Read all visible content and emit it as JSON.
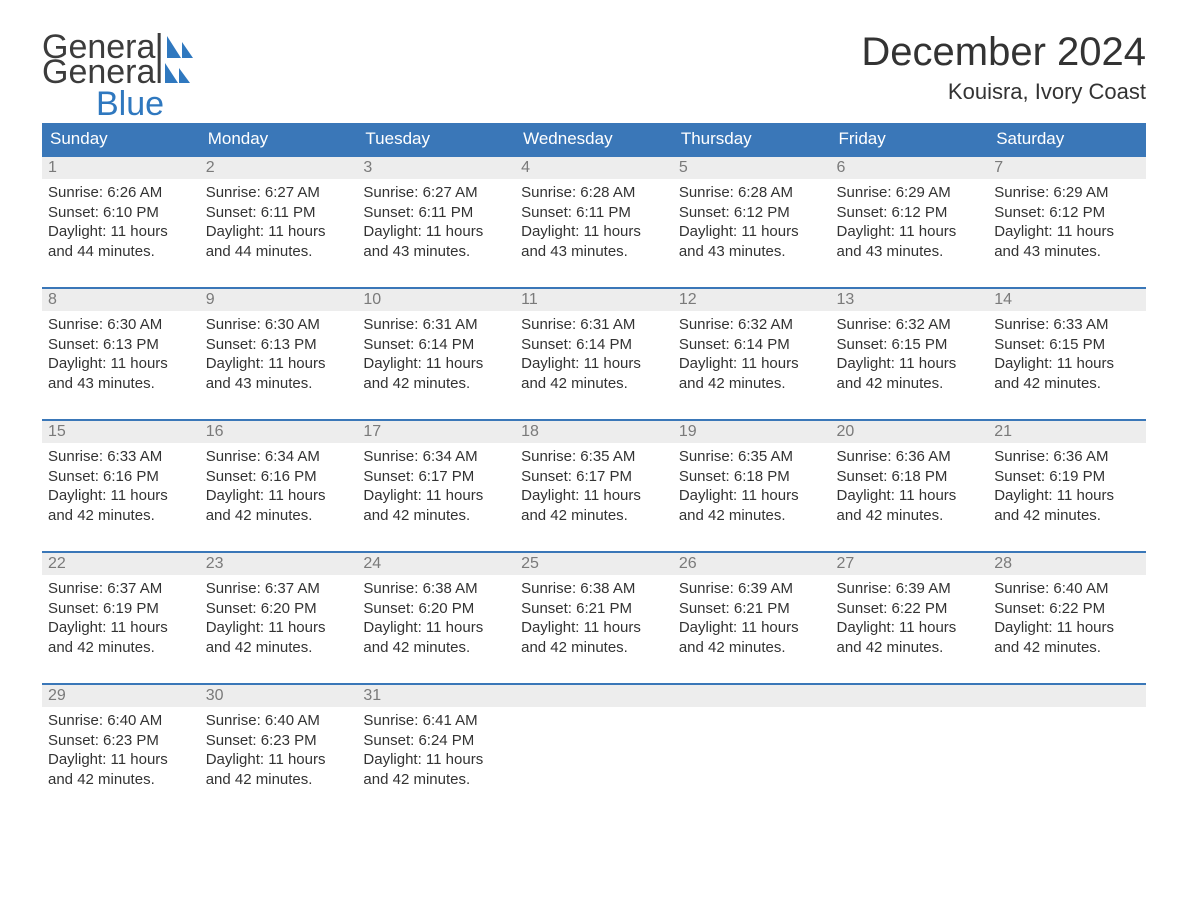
{
  "brand": {
    "part1": "General",
    "part2": "Blue"
  },
  "header": {
    "title": "December 2024",
    "location": "Kouisra, Ivory Coast"
  },
  "colors": {
    "header_bg": "#3a77b8",
    "header_text": "#ffffff",
    "daybar_bg": "#ededed",
    "daybar_border": "#3a77b8",
    "daynum_color": "#7a7a7a",
    "body_text": "#333333",
    "brand_gray": "#3c3c3c",
    "brand_blue": "#2f78bf",
    "page_bg": "#ffffff"
  },
  "typography": {
    "title_fontsize": 40,
    "location_fontsize": 22,
    "weekday_fontsize": 17,
    "body_fontsize": 15,
    "logo_fontsize": 34
  },
  "calendar": {
    "weekdays": [
      "Sunday",
      "Monday",
      "Tuesday",
      "Wednesday",
      "Thursday",
      "Friday",
      "Saturday"
    ],
    "weeks": [
      [
        {
          "day": "1",
          "sunrise": "Sunrise: 6:26 AM",
          "sunset": "Sunset: 6:10 PM",
          "daylight1": "Daylight: 11 hours",
          "daylight2": "and 44 minutes."
        },
        {
          "day": "2",
          "sunrise": "Sunrise: 6:27 AM",
          "sunset": "Sunset: 6:11 PM",
          "daylight1": "Daylight: 11 hours",
          "daylight2": "and 44 minutes."
        },
        {
          "day": "3",
          "sunrise": "Sunrise: 6:27 AM",
          "sunset": "Sunset: 6:11 PM",
          "daylight1": "Daylight: 11 hours",
          "daylight2": "and 43 minutes."
        },
        {
          "day": "4",
          "sunrise": "Sunrise: 6:28 AM",
          "sunset": "Sunset: 6:11 PM",
          "daylight1": "Daylight: 11 hours",
          "daylight2": "and 43 minutes."
        },
        {
          "day": "5",
          "sunrise": "Sunrise: 6:28 AM",
          "sunset": "Sunset: 6:12 PM",
          "daylight1": "Daylight: 11 hours",
          "daylight2": "and 43 minutes."
        },
        {
          "day": "6",
          "sunrise": "Sunrise: 6:29 AM",
          "sunset": "Sunset: 6:12 PM",
          "daylight1": "Daylight: 11 hours",
          "daylight2": "and 43 minutes."
        },
        {
          "day": "7",
          "sunrise": "Sunrise: 6:29 AM",
          "sunset": "Sunset: 6:12 PM",
          "daylight1": "Daylight: 11 hours",
          "daylight2": "and 43 minutes."
        }
      ],
      [
        {
          "day": "8",
          "sunrise": "Sunrise: 6:30 AM",
          "sunset": "Sunset: 6:13 PM",
          "daylight1": "Daylight: 11 hours",
          "daylight2": "and 43 minutes."
        },
        {
          "day": "9",
          "sunrise": "Sunrise: 6:30 AM",
          "sunset": "Sunset: 6:13 PM",
          "daylight1": "Daylight: 11 hours",
          "daylight2": "and 43 minutes."
        },
        {
          "day": "10",
          "sunrise": "Sunrise: 6:31 AM",
          "sunset": "Sunset: 6:14 PM",
          "daylight1": "Daylight: 11 hours",
          "daylight2": "and 42 minutes."
        },
        {
          "day": "11",
          "sunrise": "Sunrise: 6:31 AM",
          "sunset": "Sunset: 6:14 PM",
          "daylight1": "Daylight: 11 hours",
          "daylight2": "and 42 minutes."
        },
        {
          "day": "12",
          "sunrise": "Sunrise: 6:32 AM",
          "sunset": "Sunset: 6:14 PM",
          "daylight1": "Daylight: 11 hours",
          "daylight2": "and 42 minutes."
        },
        {
          "day": "13",
          "sunrise": "Sunrise: 6:32 AM",
          "sunset": "Sunset: 6:15 PM",
          "daylight1": "Daylight: 11 hours",
          "daylight2": "and 42 minutes."
        },
        {
          "day": "14",
          "sunrise": "Sunrise: 6:33 AM",
          "sunset": "Sunset: 6:15 PM",
          "daylight1": "Daylight: 11 hours",
          "daylight2": "and 42 minutes."
        }
      ],
      [
        {
          "day": "15",
          "sunrise": "Sunrise: 6:33 AM",
          "sunset": "Sunset: 6:16 PM",
          "daylight1": "Daylight: 11 hours",
          "daylight2": "and 42 minutes."
        },
        {
          "day": "16",
          "sunrise": "Sunrise: 6:34 AM",
          "sunset": "Sunset: 6:16 PM",
          "daylight1": "Daylight: 11 hours",
          "daylight2": "and 42 minutes."
        },
        {
          "day": "17",
          "sunrise": "Sunrise: 6:34 AM",
          "sunset": "Sunset: 6:17 PM",
          "daylight1": "Daylight: 11 hours",
          "daylight2": "and 42 minutes."
        },
        {
          "day": "18",
          "sunrise": "Sunrise: 6:35 AM",
          "sunset": "Sunset: 6:17 PM",
          "daylight1": "Daylight: 11 hours",
          "daylight2": "and 42 minutes."
        },
        {
          "day": "19",
          "sunrise": "Sunrise: 6:35 AM",
          "sunset": "Sunset: 6:18 PM",
          "daylight1": "Daylight: 11 hours",
          "daylight2": "and 42 minutes."
        },
        {
          "day": "20",
          "sunrise": "Sunrise: 6:36 AM",
          "sunset": "Sunset: 6:18 PM",
          "daylight1": "Daylight: 11 hours",
          "daylight2": "and 42 minutes."
        },
        {
          "day": "21",
          "sunrise": "Sunrise: 6:36 AM",
          "sunset": "Sunset: 6:19 PM",
          "daylight1": "Daylight: 11 hours",
          "daylight2": "and 42 minutes."
        }
      ],
      [
        {
          "day": "22",
          "sunrise": "Sunrise: 6:37 AM",
          "sunset": "Sunset: 6:19 PM",
          "daylight1": "Daylight: 11 hours",
          "daylight2": "and 42 minutes."
        },
        {
          "day": "23",
          "sunrise": "Sunrise: 6:37 AM",
          "sunset": "Sunset: 6:20 PM",
          "daylight1": "Daylight: 11 hours",
          "daylight2": "and 42 minutes."
        },
        {
          "day": "24",
          "sunrise": "Sunrise: 6:38 AM",
          "sunset": "Sunset: 6:20 PM",
          "daylight1": "Daylight: 11 hours",
          "daylight2": "and 42 minutes."
        },
        {
          "day": "25",
          "sunrise": "Sunrise: 6:38 AM",
          "sunset": "Sunset: 6:21 PM",
          "daylight1": "Daylight: 11 hours",
          "daylight2": "and 42 minutes."
        },
        {
          "day": "26",
          "sunrise": "Sunrise: 6:39 AM",
          "sunset": "Sunset: 6:21 PM",
          "daylight1": "Daylight: 11 hours",
          "daylight2": "and 42 minutes."
        },
        {
          "day": "27",
          "sunrise": "Sunrise: 6:39 AM",
          "sunset": "Sunset: 6:22 PM",
          "daylight1": "Daylight: 11 hours",
          "daylight2": "and 42 minutes."
        },
        {
          "day": "28",
          "sunrise": "Sunrise: 6:40 AM",
          "sunset": "Sunset: 6:22 PM",
          "daylight1": "Daylight: 11 hours",
          "daylight2": "and 42 minutes."
        }
      ],
      [
        {
          "day": "29",
          "sunrise": "Sunrise: 6:40 AM",
          "sunset": "Sunset: 6:23 PM",
          "daylight1": "Daylight: 11 hours",
          "daylight2": "and 42 minutes."
        },
        {
          "day": "30",
          "sunrise": "Sunrise: 6:40 AM",
          "sunset": "Sunset: 6:23 PM",
          "daylight1": "Daylight: 11 hours",
          "daylight2": "and 42 minutes."
        },
        {
          "day": "31",
          "sunrise": "Sunrise: 6:41 AM",
          "sunset": "Sunset: 6:24 PM",
          "daylight1": "Daylight: 11 hours",
          "daylight2": "and 42 minutes."
        },
        {
          "empty": true
        },
        {
          "empty": true
        },
        {
          "empty": true
        },
        {
          "empty": true
        }
      ]
    ]
  }
}
